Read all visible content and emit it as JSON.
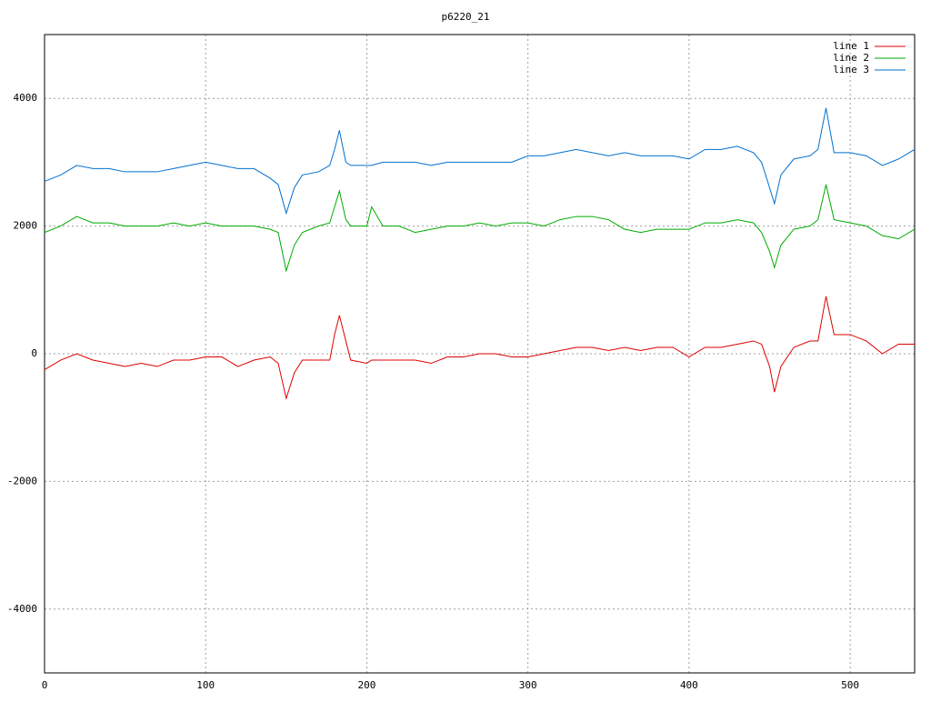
{
  "chart_data": {
    "type": "line",
    "title": "p6220_21",
    "x": [
      0,
      10,
      20,
      30,
      40,
      50,
      60,
      70,
      80,
      90,
      100,
      110,
      120,
      130,
      140,
      145,
      150,
      155,
      160,
      170,
      177,
      180,
      183,
      187,
      190,
      200,
      203,
      210,
      220,
      230,
      240,
      250,
      260,
      270,
      280,
      290,
      300,
      310,
      320,
      330,
      340,
      350,
      360,
      370,
      380,
      390,
      400,
      410,
      420,
      430,
      440,
      445,
      450,
      453,
      457,
      465,
      475,
      480,
      485,
      490,
      500,
      510,
      520,
      530,
      540
    ],
    "series": [
      {
        "name": "line 1",
        "color": "#dd0000",
        "values": [
          -250,
          -100,
          0,
          -100,
          -150,
          -200,
          -150,
          -200,
          -100,
          -100,
          -50,
          -50,
          -200,
          -100,
          -50,
          -150,
          -700,
          -300,
          -100,
          -100,
          -100,
          300,
          600,
          200,
          -100,
          -150,
          -100,
          -100,
          -100,
          -100,
          -150,
          -50,
          -50,
          0,
          0,
          -50,
          -50,
          0,
          50,
          100,
          100,
          50,
          100,
          50,
          100,
          100,
          -50,
          100,
          100,
          150,
          200,
          150,
          -200,
          -600,
          -200,
          100,
          200,
          200,
          900,
          300,
          300,
          200,
          0,
          150,
          150
        ]
      },
      {
        "name": "line 2",
        "color": "#00aa00",
        "values": [
          1900,
          2000,
          2150,
          2050,
          2050,
          2000,
          2000,
          2000,
          2050,
          2000,
          2050,
          2000,
          2000,
          2000,
          1950,
          1900,
          1300,
          1700,
          1900,
          2000,
          2050,
          2300,
          2550,
          2100,
          2000,
          2000,
          2300,
          2000,
          2000,
          1900,
          1950,
          2000,
          2000,
          2050,
          2000,
          2050,
          2050,
          2000,
          2100,
          2150,
          2150,
          2100,
          1950,
          1900,
          1950,
          1950,
          1950,
          2050,
          2050,
          2100,
          2050,
          1900,
          1600,
          1350,
          1700,
          1950,
          2000,
          2100,
          2650,
          2100,
          2050,
          2000,
          1850,
          1800,
          1950
        ]
      },
      {
        "name": "line 3",
        "color": "#0070d0",
        "values": [
          2700,
          2800,
          2950,
          2900,
          2900,
          2850,
          2850,
          2850,
          2900,
          2950,
          3000,
          2950,
          2900,
          2900,
          2750,
          2650,
          2200,
          2600,
          2800,
          2850,
          2950,
          3200,
          3500,
          3000,
          2950,
          2950,
          2950,
          3000,
          3000,
          3000,
          2950,
          3000,
          3000,
          3000,
          3000,
          3000,
          3100,
          3100,
          3150,
          3200,
          3150,
          3100,
          3150,
          3100,
          3100,
          3100,
          3050,
          3200,
          3200,
          3250,
          3150,
          3000,
          2600,
          2350,
          2800,
          3050,
          3100,
          3200,
          3850,
          3150,
          3150,
          3100,
          2950,
          3050,
          3200
        ]
      }
    ],
    "xlim": [
      0,
      540
    ],
    "xticks": [
      0,
      100,
      200,
      300,
      400,
      500
    ],
    "ylim": [
      -5000,
      5000
    ],
    "yticks": [
      -4000,
      -2000,
      0,
      2000,
      4000
    ],
    "grid": true,
    "legend": "top-right"
  }
}
